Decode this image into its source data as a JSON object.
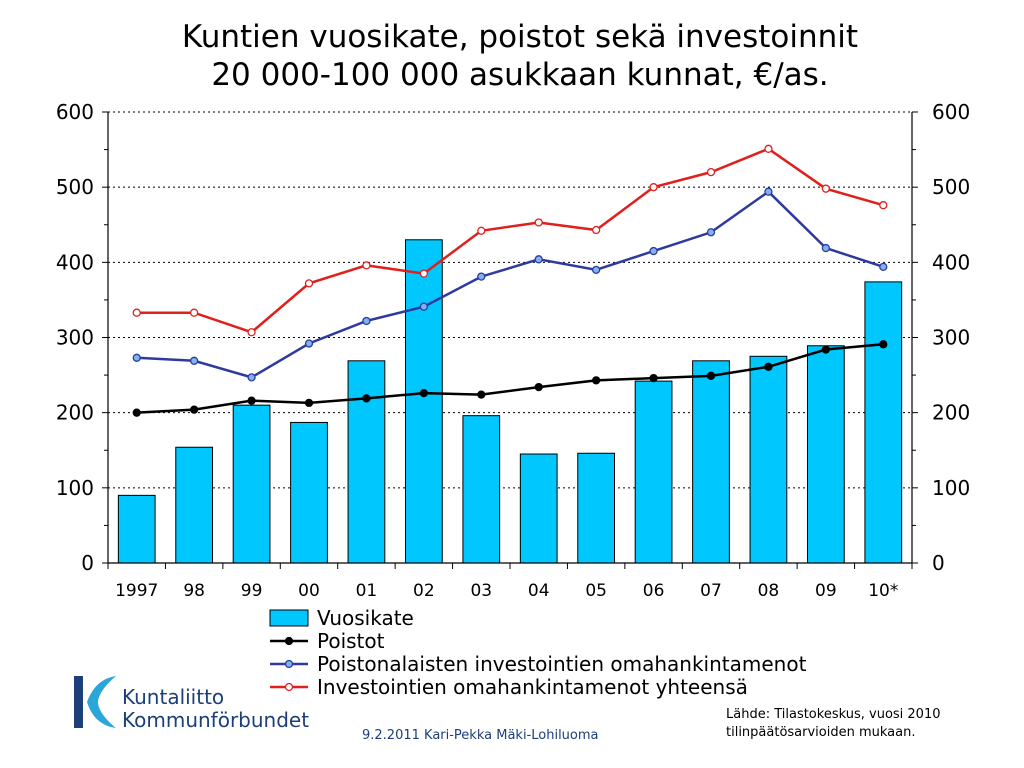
{
  "title": "Kuntien vuosikate, poistot sekä investoinnit",
  "subtitle": "20 000-100 000 asukkaan kunnat, €/as.",
  "chart_data": {
    "type": "bar",
    "categories": [
      "1997",
      "98",
      "99",
      "00",
      "01",
      "02",
      "03",
      "04",
      "05",
      "06",
      "07",
      "08",
      "09",
      "10*"
    ],
    "ylim": [
      0,
      600
    ],
    "yticks": [
      "0",
      "100",
      "200",
      "300",
      "400",
      "500",
      "600"
    ],
    "grid": "dotted horizontal at 100-600",
    "legend_position": "bottom",
    "colors": {
      "bar": "#00c8ff",
      "poistot": "#000000",
      "poistonalaisten": "#2e3a9e",
      "yhteensa": "#e0201c"
    },
    "series": [
      {
        "name": "Vuosikate",
        "type": "bar",
        "values": [
          90,
          154,
          210,
          187,
          269,
          430,
          196,
          145,
          146,
          242,
          269,
          275,
          289,
          374
        ]
      },
      {
        "name": "Poistot",
        "type": "line",
        "values": [
          200,
          204,
          216,
          213,
          219,
          226,
          224,
          234,
          243,
          246,
          249,
          261,
          284,
          291
        ]
      },
      {
        "name": "Poistonalaisten investointien omahankintamenot",
        "type": "line",
        "values": [
          273,
          269,
          247,
          292,
          322,
          341,
          381,
          404,
          390,
          415,
          440,
          494,
          419,
          394
        ]
      },
      {
        "name": "Investointien omahankintamenot yhteensä",
        "type": "line",
        "values": [
          333,
          333,
          307,
          372,
          396,
          385,
          442,
          453,
          443,
          500,
          520,
          551,
          498,
          476
        ]
      }
    ]
  },
  "logo": {
    "line1": "Kuntaliitto",
    "line2": "Kommunförbundet"
  },
  "footer": "9.2.2011 Kari-Pekka Mäki-Lohiluoma",
  "source": {
    "line1": "Lähde: Tilastokeskus, vuosi 2010",
    "line2": "tilinpäätösarvioiden mukaan."
  }
}
